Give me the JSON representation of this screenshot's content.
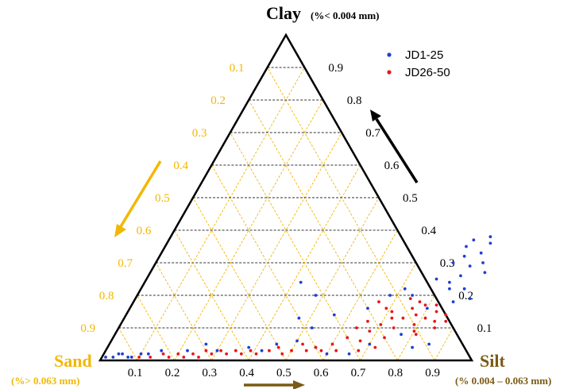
{
  "chart_data": {
    "type": "scatter",
    "subtype": "ternary",
    "corners": {
      "top": {
        "label": "Clay",
        "sub": "(%< 0.004 mm)"
      },
      "left": {
        "label": "Sand",
        "sub": "(%> 0.063 mm)"
      },
      "right": {
        "label": "Silt",
        "sub": "(% 0.004 – 0.063 mm)"
      }
    },
    "ticks": {
      "clay": [
        "0.9",
        "0.8",
        "0.7",
        "0.6",
        "0.5",
        "0.4",
        "0.3",
        "0.2",
        "0.1"
      ],
      "sand": [
        "0.1",
        "0.2",
        "0.3",
        "0.4",
        "0.5",
        "0.6",
        "0.7",
        "0.8",
        "0.9"
      ],
      "silt": [
        "0.1",
        "0.2",
        "0.3",
        "0.4",
        "0.5",
        "0.6",
        "0.7",
        "0.8",
        "0.9"
      ]
    },
    "tick_values": [
      0.1,
      0.2,
      0.3,
      0.4,
      0.5,
      0.6,
      0.7,
      0.8,
      0.9
    ],
    "colors": {
      "clay_axis": "#000000",
      "sand_axis": "#f2b705",
      "silt_axis": "#7a5a14",
      "sand_label": "#f2b705",
      "silt_label": "#7a5a14",
      "clay_grid": "#333333",
      "series1": "#1f3fd6",
      "series2": "#e8161a"
    },
    "legend": {
      "position": "top-right"
    },
    "series": [
      {
        "name": "JD1-25",
        "color": "#1f3fd6",
        "points": [
          {
            "silt": 0.01,
            "clay": 0.01
          },
          {
            "silt": 0.03,
            "clay": 0.01
          },
          {
            "silt": 0.04,
            "clay": 0.02
          },
          {
            "silt": 0.05,
            "clay": 0.02
          },
          {
            "silt": 0.07,
            "clay": 0.01
          },
          {
            "silt": 0.08,
            "clay": 0.01
          },
          {
            "silt": 0.1,
            "clay": 0.02
          },
          {
            "silt": 0.12,
            "clay": 0.02
          },
          {
            "silt": 0.15,
            "clay": 0.03
          },
          {
            "silt": 0.22,
            "clay": 0.03
          },
          {
            "silt": 0.26,
            "clay": 0.05
          },
          {
            "silt": 0.3,
            "clay": 0.03
          },
          {
            "silt": 0.38,
            "clay": 0.04
          },
          {
            "silt": 0.42,
            "clay": 0.03
          },
          {
            "silt": 0.45,
            "clay": 0.05
          },
          {
            "silt": 0.5,
            "clay": 0.06
          },
          {
            "silt": 0.56,
            "clay": 0.04
          },
          {
            "silt": 0.6,
            "clay": 0.02
          },
          {
            "silt": 0.66,
            "clay": 0.02
          },
          {
            "silt": 0.7,
            "clay": 0.05
          },
          {
            "silt": 0.42,
            "clay": 0.24
          },
          {
            "silt": 0.48,
            "clay": 0.2
          },
          {
            "silt": 0.47,
            "clay": 0.13
          },
          {
            "silt": 0.52,
            "clay": 0.1
          },
          {
            "silt": 0.56,
            "clay": 0.14
          },
          {
            "silt": 0.64,
            "clay": 0.16
          },
          {
            "silt": 0.68,
            "clay": 0.2
          },
          {
            "silt": 0.71,
            "clay": 0.22
          },
          {
            "silt": 0.74,
            "clay": 0.2
          },
          {
            "silt": 0.8,
            "clay": 0.16
          },
          {
            "silt": 0.83,
            "clay": 0.22
          },
          {
            "silt": 0.82,
            "clay": 0.24
          },
          {
            "silt": 0.86,
            "clay": 0.18
          },
          {
            "silt": 0.87,
            "clay": 0.22
          },
          {
            "silt": 0.9,
            "clay": 0.27
          },
          {
            "silt": 0.86,
            "clay": 0.33
          },
          {
            "silt": 0.87,
            "clay": 0.36
          },
          {
            "silt": 0.86,
            "clay": 0.38
          },
          {
            "silt": 0.82,
            "clay": 0.37
          },
          {
            "silt": 0.81,
            "clay": 0.35
          },
          {
            "silt": 0.82,
            "clay": 0.32
          },
          {
            "silt": 0.8,
            "clay": 0.3
          },
          {
            "silt": 0.85,
            "clay": 0.29
          },
          {
            "silt": 0.88,
            "clay": 0.3
          },
          {
            "silt": 0.84,
            "clay": 0.26
          },
          {
            "silt": 0.78,
            "clay": 0.25
          },
          {
            "silt": 0.9,
            "clay": 0.19
          },
          {
            "silt": 0.77,
            "clay": 0.08
          },
          {
            "silt": 0.82,
            "clay": 0.04
          },
          {
            "silt": 0.86,
            "clay": 0.05
          }
        ]
      },
      {
        "name": "JD26-50",
        "color": "#e8161a",
        "points": [
          {
            "silt": 0.1,
            "clay": 0.01
          },
          {
            "silt": 0.13,
            "clay": 0.01
          },
          {
            "silt": 0.16,
            "clay": 0.02
          },
          {
            "silt": 0.18,
            "clay": 0.01
          },
          {
            "silt": 0.2,
            "clay": 0.02
          },
          {
            "silt": 0.22,
            "clay": 0.01
          },
          {
            "silt": 0.24,
            "clay": 0.02
          },
          {
            "silt": 0.26,
            "clay": 0.01
          },
          {
            "silt": 0.27,
            "clay": 0.03
          },
          {
            "silt": 0.29,
            "clay": 0.02
          },
          {
            "silt": 0.31,
            "clay": 0.03
          },
          {
            "silt": 0.33,
            "clay": 0.02
          },
          {
            "silt": 0.35,
            "clay": 0.03
          },
          {
            "silt": 0.37,
            "clay": 0.02
          },
          {
            "silt": 0.39,
            "clay": 0.03
          },
          {
            "silt": 0.41,
            "clay": 0.02
          },
          {
            "silt": 0.44,
            "clay": 0.03
          },
          {
            "silt": 0.46,
            "clay": 0.04
          },
          {
            "silt": 0.48,
            "clay": 0.02
          },
          {
            "silt": 0.5,
            "clay": 0.03
          },
          {
            "silt": 0.52,
            "clay": 0.05
          },
          {
            "silt": 0.54,
            "clay": 0.03
          },
          {
            "silt": 0.56,
            "clay": 0.04
          },
          {
            "silt": 0.58,
            "clay": 0.03
          },
          {
            "silt": 0.6,
            "clay": 0.05
          },
          {
            "silt": 0.62,
            "clay": 0.03
          },
          {
            "silt": 0.63,
            "clay": 0.07
          },
          {
            "silt": 0.64,
            "clay": 0.1
          },
          {
            "silt": 0.66,
            "clay": 0.12
          },
          {
            "silt": 0.67,
            "clay": 0.06
          },
          {
            "silt": 0.68,
            "clay": 0.09
          },
          {
            "silt": 0.7,
            "clay": 0.11
          },
          {
            "silt": 0.71,
            "clay": 0.15
          },
          {
            "silt": 0.72,
            "clay": 0.13
          },
          {
            "silt": 0.73,
            "clay": 0.07
          },
          {
            "silt": 0.74,
            "clay": 0.1
          },
          {
            "silt": 0.75,
            "clay": 0.13
          },
          {
            "silt": 0.76,
            "clay": 0.16
          },
          {
            "silt": 0.77,
            "clay": 0.18
          },
          {
            "silt": 0.78,
            "clay": 0.14
          },
          {
            "silt": 0.79,
            "clay": 0.11
          },
          {
            "silt": 0.8,
            "clay": 0.09
          },
          {
            "silt": 0.81,
            "clay": 0.13
          },
          {
            "silt": 0.82,
            "clay": 0.17
          },
          {
            "silt": 0.83,
            "clay": 0.15
          },
          {
            "silt": 0.84,
            "clay": 0.12
          },
          {
            "silt": 0.85,
            "clay": 0.1
          },
          {
            "silt": 0.86,
            "clay": 0.14
          },
          {
            "silt": 0.87,
            "clay": 0.12
          },
          {
            "silt": 0.66,
            "clay": 0.18
          },
          {
            "silt": 0.69,
            "clay": 0.16
          },
          {
            "silt": 0.74,
            "clay": 0.19
          },
          {
            "silt": 0.79,
            "clay": 0.17
          },
          {
            "silt": 0.81,
            "clay": 0.08
          },
          {
            "silt": 0.72,
            "clay": 0.04
          },
          {
            "silt": 0.68,
            "clay": 0.03
          }
        ]
      }
    ]
  }
}
